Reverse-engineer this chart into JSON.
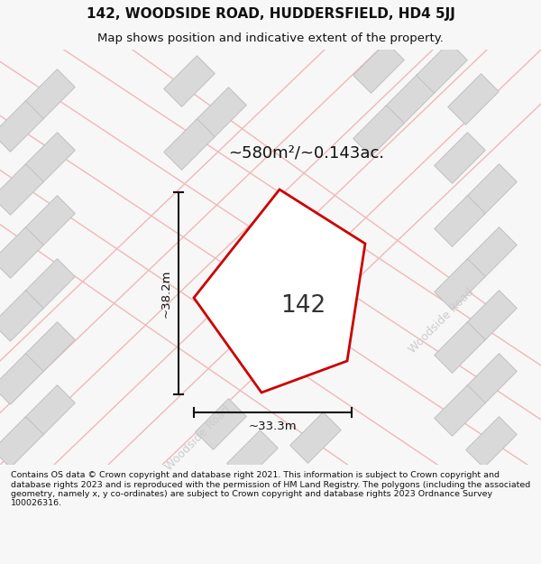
{
  "title": "142, WOODSIDE ROAD, HUDDERSFIELD, HD4 5JJ",
  "subtitle": "Map shows position and indicative extent of the property.",
  "area_label": "~580m²/~0.143ac.",
  "house_number": "142",
  "dim_width": "~33.3m",
  "dim_height": "~38.2m",
  "road_label_bottom": "Woodside Road",
  "road_label_right": "Woodside Road",
  "footer": "Contains OS data © Crown copyright and database right 2021. This information is subject to Crown copyright and database rights 2023 and is reproduced with the permission of HM Land Registry. The polygons (including the associated geometry, namely x, y co-ordinates) are subject to Crown copyright and database rights 2023 Ordnance Survey 100026316.",
  "bg_color": "#f7f7f7",
  "map_bg": "#ffffff",
  "plot_edge_color": "#cc0000",
  "building_color": "#d9d9d9",
  "building_edge_color": "#c0c0c0",
  "road_line_color": "#f0b8b8",
  "dim_line_color": "#111111",
  "road_text_color": "#cccccc",
  "title_color": "#111111",
  "footer_color": "#111111",
  "separator_color": "#bbbbbb"
}
